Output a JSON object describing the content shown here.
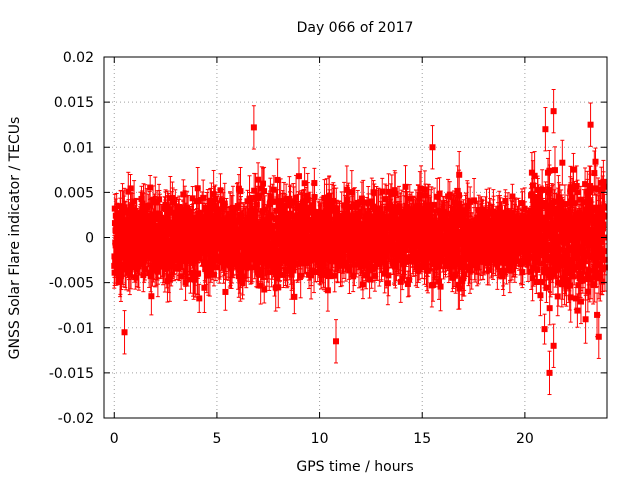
{
  "chart_data": {
    "type": "scatter",
    "title": "Day 066 of 2017",
    "xlabel": "GPS time / hours",
    "ylabel": "GNSS Solar Flare indicator / TECUs",
    "xlim": [
      -0.5,
      24.0
    ],
    "ylim": [
      -0.02,
      0.02
    ],
    "x_ticks": [
      0,
      5,
      10,
      15,
      20
    ],
    "x_tick_labels": [
      "0",
      "5",
      "10",
      "15",
      "20"
    ],
    "y_ticks": [
      -0.02,
      -0.015,
      -0.01,
      -0.005,
      0,
      0.005,
      0.01,
      0.015,
      0.02
    ],
    "y_tick_labels": [
      "-0.02",
      "-0.015",
      "-0.01",
      "-0.005",
      "0",
      "0.005",
      "0.01",
      "0.015",
      "0.02"
    ],
    "grid": true,
    "series_color": "#ff0000",
    "marker": "square",
    "error_bars": true,
    "sampling_interval_hours": 0.00833,
    "data_range_hours": [
      0,
      23.9
    ],
    "typical_amplitude": 0.004,
    "typical_error": 0.002,
    "highlighted_points": [
      {
        "x": 0.5,
        "y": -0.0105
      },
      {
        "x": 6.8,
        "y": 0.0122
      },
      {
        "x": 10.8,
        "y": -0.0115
      },
      {
        "x": 15.5,
        "y": 0.01
      },
      {
        "x": 21.0,
        "y": 0.012
      },
      {
        "x": 21.2,
        "y": -0.015
      },
      {
        "x": 21.4,
        "y": 0.014
      },
      {
        "x": 21.4,
        "y": -0.012
      },
      {
        "x": 23.2,
        "y": 0.0125
      },
      {
        "x": 23.6,
        "y": -0.011
      }
    ]
  }
}
